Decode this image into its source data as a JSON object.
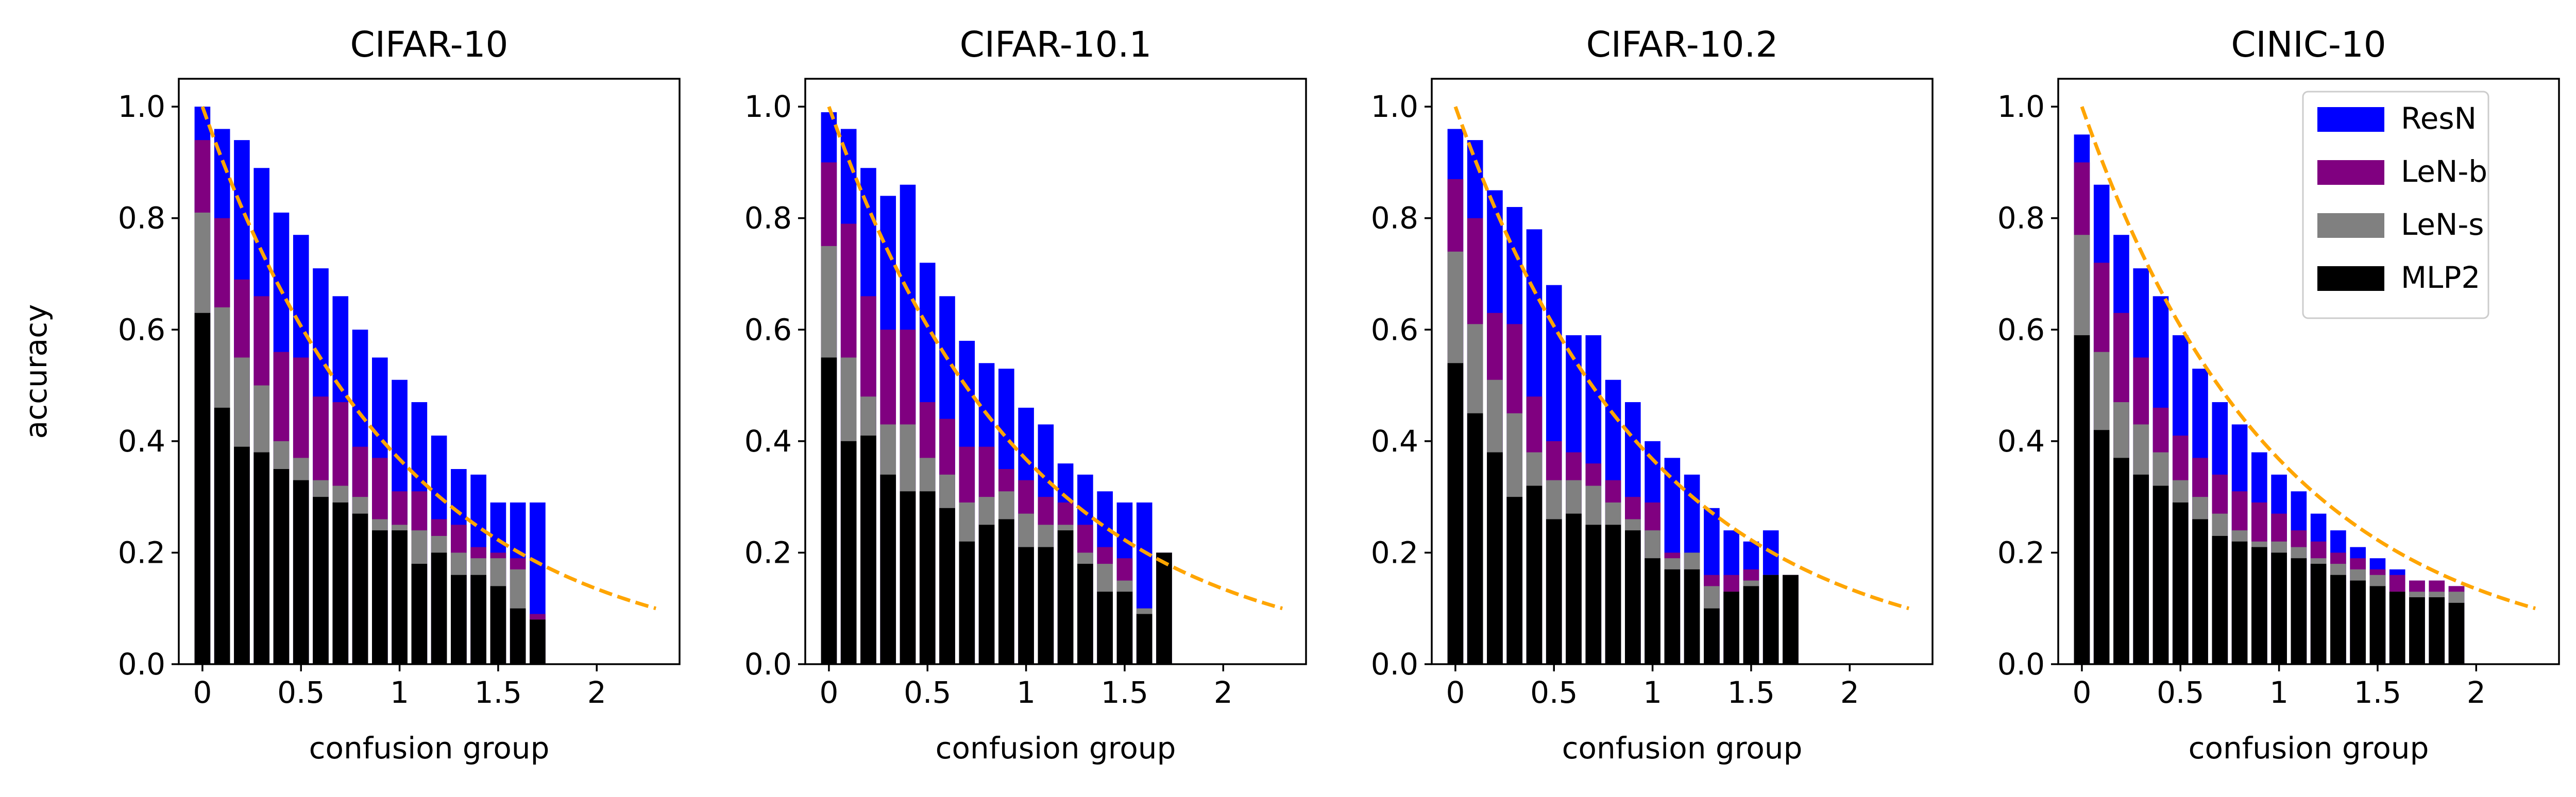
{
  "chart_data": [
    {
      "type": "bar",
      "title": "CIFAR-10",
      "xlabel": "confusion group",
      "ylabel": "accuracy",
      "xlim": [
        -0.12,
        2.42
      ],
      "ylim": [
        0,
        1.05
      ],
      "xticks": [
        "0",
        "0.5",
        "1",
        "1.5",
        "2"
      ],
      "yticks": [
        "0.0",
        "0.2",
        "0.4",
        "0.6",
        "0.8",
        "1.0"
      ],
      "x": [
        0,
        0.1,
        0.2,
        0.3,
        0.4,
        0.5,
        0.6,
        0.7,
        0.8,
        0.9,
        1.0,
        1.1,
        1.2,
        1.3,
        1.4,
        1.5,
        1.6,
        1.7
      ],
      "series": [
        {
          "name": "ResN",
          "color": "#0000ff",
          "values": [
            1.0,
            0.96,
            0.94,
            0.89,
            0.81,
            0.77,
            0.71,
            0.66,
            0.6,
            0.55,
            0.51,
            0.47,
            0.41,
            0.35,
            0.34,
            0.29,
            0.29,
            0.29
          ]
        },
        {
          "name": "LeN-b",
          "color": "#800080",
          "values": [
            0.94,
            0.8,
            0.69,
            0.66,
            0.56,
            0.55,
            0.48,
            0.47,
            0.39,
            0.37,
            0.31,
            0.31,
            0.26,
            0.25,
            0.21,
            0.2,
            0.19,
            0.09
          ]
        },
        {
          "name": "LeN-s",
          "color": "#808080",
          "values": [
            0.81,
            0.64,
            0.55,
            0.5,
            0.4,
            0.37,
            0.33,
            0.32,
            0.3,
            0.26,
            0.25,
            0.24,
            0.23,
            0.2,
            0.19,
            0.19,
            0.17,
            0.08
          ]
        },
        {
          "name": "MLP2",
          "color": "#000000",
          "values": [
            0.63,
            0.46,
            0.39,
            0.38,
            0.35,
            0.33,
            0.3,
            0.29,
            0.27,
            0.24,
            0.24,
            0.18,
            0.2,
            0.16,
            0.16,
            0.14,
            0.1,
            0.08
          ]
        }
      ],
      "reference_curve": {
        "color": "#ffa500",
        "style": "dashed",
        "x_range": [
          0,
          2.3
        ],
        "y_start": 1.0,
        "y_end": 0.1
      }
    },
    {
      "type": "bar",
      "title": "CIFAR-10.1",
      "xlabel": "confusion group",
      "ylabel": "",
      "xlim": [
        -0.12,
        2.42
      ],
      "ylim": [
        0,
        1.05
      ],
      "xticks": [
        "0",
        "0.5",
        "1",
        "1.5",
        "2"
      ],
      "yticks": [
        "0.0",
        "0.2",
        "0.4",
        "0.6",
        "0.8",
        "1.0"
      ],
      "x": [
        0,
        0.1,
        0.2,
        0.3,
        0.4,
        0.5,
        0.6,
        0.7,
        0.8,
        0.9,
        1.0,
        1.1,
        1.2,
        1.3,
        1.4,
        1.5,
        1.6,
        1.7
      ],
      "series": [
        {
          "name": "ResN",
          "color": "#0000ff",
          "values": [
            0.99,
            0.96,
            0.89,
            0.84,
            0.86,
            0.72,
            0.66,
            0.58,
            0.54,
            0.53,
            0.46,
            0.43,
            0.36,
            0.34,
            0.31,
            0.29,
            0.29,
            0.2
          ]
        },
        {
          "name": "LeN-b",
          "color": "#800080",
          "values": [
            0.9,
            0.79,
            0.66,
            0.6,
            0.6,
            0.47,
            0.44,
            0.39,
            0.39,
            0.35,
            0.33,
            0.3,
            0.29,
            0.25,
            0.21,
            0.19,
            0.1,
            0.2
          ]
        },
        {
          "name": "LeN-s",
          "color": "#808080",
          "values": [
            0.75,
            0.55,
            0.48,
            0.43,
            0.43,
            0.37,
            0.34,
            0.29,
            0.3,
            0.31,
            0.27,
            0.25,
            0.25,
            0.2,
            0.18,
            0.15,
            0.1,
            0.2
          ]
        },
        {
          "name": "MLP2",
          "color": "#000000",
          "values": [
            0.55,
            0.4,
            0.41,
            0.34,
            0.31,
            0.31,
            0.28,
            0.22,
            0.25,
            0.26,
            0.21,
            0.21,
            0.24,
            0.18,
            0.13,
            0.13,
            0.09,
            0.2
          ]
        }
      ],
      "reference_curve": {
        "color": "#ffa500",
        "style": "dashed",
        "x_range": [
          0,
          2.3
        ],
        "y_start": 1.0,
        "y_end": 0.1
      }
    },
    {
      "type": "bar",
      "title": "CIFAR-10.2",
      "xlabel": "confusion group",
      "ylabel": "",
      "xlim": [
        -0.12,
        2.42
      ],
      "ylim": [
        0,
        1.05
      ],
      "xticks": [
        "0",
        "0.5",
        "1",
        "1.5",
        "2"
      ],
      "yticks": [
        "0.0",
        "0.2",
        "0.4",
        "0.6",
        "0.8",
        "1.0"
      ],
      "x": [
        0,
        0.1,
        0.2,
        0.3,
        0.4,
        0.5,
        0.6,
        0.7,
        0.8,
        0.9,
        1.0,
        1.1,
        1.2,
        1.3,
        1.4,
        1.5,
        1.6,
        1.7
      ],
      "series": [
        {
          "name": "ResN",
          "color": "#0000ff",
          "values": [
            0.96,
            0.94,
            0.85,
            0.82,
            0.78,
            0.68,
            0.59,
            0.59,
            0.51,
            0.47,
            0.4,
            0.37,
            0.34,
            0.28,
            0.24,
            0.22,
            0.24,
            0.16
          ]
        },
        {
          "name": "LeN-b",
          "color": "#800080",
          "values": [
            0.87,
            0.8,
            0.63,
            0.61,
            0.48,
            0.4,
            0.38,
            0.36,
            0.33,
            0.3,
            0.29,
            0.2,
            0.2,
            0.16,
            0.16,
            0.17,
            0.16,
            0.16
          ]
        },
        {
          "name": "LeN-s",
          "color": "#808080",
          "values": [
            0.74,
            0.61,
            0.51,
            0.45,
            0.38,
            0.33,
            0.33,
            0.32,
            0.29,
            0.26,
            0.24,
            0.19,
            0.2,
            0.14,
            0.13,
            0.15,
            0.16,
            0.16
          ]
        },
        {
          "name": "MLP2",
          "color": "#000000",
          "values": [
            0.54,
            0.45,
            0.38,
            0.3,
            0.32,
            0.26,
            0.27,
            0.25,
            0.25,
            0.24,
            0.19,
            0.17,
            0.17,
            0.1,
            0.13,
            0.14,
            0.16,
            0.16
          ]
        }
      ],
      "reference_curve": {
        "color": "#ffa500",
        "style": "dashed",
        "x_range": [
          0,
          2.3
        ],
        "y_start": 1.0,
        "y_end": 0.1
      }
    },
    {
      "type": "bar",
      "title": "CINIC-10",
      "xlabel": "confusion group",
      "ylabel": "",
      "xlim": [
        -0.12,
        2.42
      ],
      "ylim": [
        0,
        1.05
      ],
      "xticks": [
        "0",
        "0.5",
        "1",
        "1.5",
        "2"
      ],
      "yticks": [
        "0.0",
        "0.2",
        "0.4",
        "0.6",
        "0.8",
        "1.0"
      ],
      "legend": {
        "position": "top-right",
        "entries": [
          "ResN",
          "LeN-b",
          "LeN-s",
          "MLP2"
        ]
      },
      "x": [
        0,
        0.1,
        0.2,
        0.3,
        0.4,
        0.5,
        0.6,
        0.7,
        0.8,
        0.9,
        1.0,
        1.1,
        1.2,
        1.3,
        1.4,
        1.5,
        1.6,
        1.7,
        1.8,
        1.9
      ],
      "series": [
        {
          "name": "ResN",
          "color": "#0000ff",
          "values": [
            0.95,
            0.86,
            0.77,
            0.71,
            0.66,
            0.59,
            0.53,
            0.47,
            0.43,
            0.38,
            0.34,
            0.31,
            0.27,
            0.24,
            0.21,
            0.19,
            0.17,
            0.15,
            0.15,
            0.14
          ]
        },
        {
          "name": "LeN-b",
          "color": "#800080",
          "values": [
            0.9,
            0.72,
            0.63,
            0.55,
            0.46,
            0.41,
            0.37,
            0.34,
            0.31,
            0.29,
            0.27,
            0.24,
            0.22,
            0.2,
            0.19,
            0.17,
            0.16,
            0.15,
            0.15,
            0.14
          ]
        },
        {
          "name": "LeN-s",
          "color": "#808080",
          "values": [
            0.77,
            0.56,
            0.47,
            0.43,
            0.38,
            0.33,
            0.3,
            0.27,
            0.24,
            0.22,
            0.22,
            0.21,
            0.19,
            0.18,
            0.17,
            0.16,
            0.13,
            0.13,
            0.13,
            0.13
          ]
        },
        {
          "name": "MLP2",
          "color": "#000000",
          "values": [
            0.59,
            0.42,
            0.37,
            0.34,
            0.32,
            0.29,
            0.26,
            0.23,
            0.22,
            0.21,
            0.2,
            0.19,
            0.18,
            0.16,
            0.15,
            0.14,
            0.13,
            0.12,
            0.12,
            0.11
          ]
        }
      ],
      "reference_curve": {
        "color": "#ffa500",
        "style": "dashed",
        "x_range": [
          0,
          2.3
        ],
        "y_start": 1.0,
        "y_end": 0.1
      }
    }
  ]
}
